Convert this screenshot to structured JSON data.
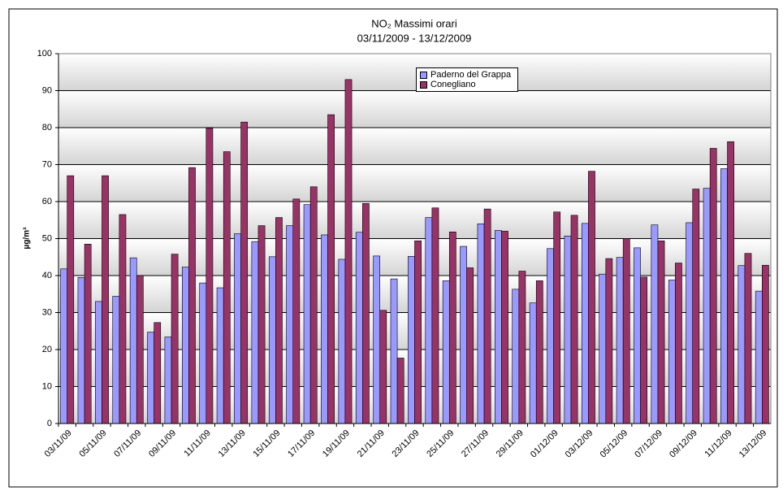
{
  "chart_data": {
    "type": "bar",
    "title": "NO₂ Massimi orari",
    "subtitle": "03/11/2009 - 13/12/2009",
    "y_label": "µg/m³",
    "categories": [
      "03/11/09",
      null,
      "05/11/09",
      null,
      "07/11/09",
      null,
      "09/11/09",
      null,
      "11/11/09",
      null,
      "13/11/09",
      null,
      "15/11/09",
      null,
      "17/11/09",
      null,
      "19/11/09",
      null,
      "21/11/09",
      null,
      "23/11/09",
      null,
      "25/11/09",
      null,
      "27/11/09",
      null,
      "29/11/09",
      null,
      "01/12/09",
      null,
      "03/12/09",
      null,
      "05/12/09",
      null,
      "07/12/09",
      null,
      "09/12/09",
      null,
      "11/12/09",
      null,
      "13/12/09"
    ],
    "series": [
      {
        "name": "Paderno del Grappa",
        "color": "#9999ff",
        "values": [
          41.8,
          39.5,
          33,
          34.4,
          44.8,
          24.7,
          23.4,
          42.3,
          38,
          36.7,
          51.3,
          49.2,
          45.1,
          53.5,
          59.2,
          51,
          44.4,
          51.7,
          45.3,
          39.1,
          45.2,
          55.7,
          38.6,
          47.9,
          54,
          52.2,
          36.3,
          32.6,
          47.3,
          50.7,
          54.1,
          40.4,
          44.9,
          47.5,
          53.7,
          38.8,
          54.3,
          63.6,
          68.9,
          42.7,
          35.8
        ]
      },
      {
        "name": "Conegliano",
        "color": "#993366",
        "values": [
          67,
          48.5,
          67,
          56.5,
          40,
          27.3,
          45.8,
          69.2,
          79.8,
          73.5,
          81.5,
          53.5,
          55.7,
          60.7,
          64,
          83.5,
          93,
          59.5,
          30.6,
          17.7,
          49.4,
          58.3,
          51.8,
          42.1,
          58,
          52,
          41.2,
          38.6,
          57.2,
          56.3,
          68.2,
          44.6,
          50,
          39.6,
          49.4,
          43.4,
          63.4,
          74.4,
          76.2,
          46,
          42.8
        ]
      }
    ],
    "ylim": [
      0,
      100
    ],
    "yticks": [
      0,
      10,
      20,
      30,
      40,
      50,
      60,
      70,
      80,
      90,
      100
    ],
    "grid": true
  }
}
